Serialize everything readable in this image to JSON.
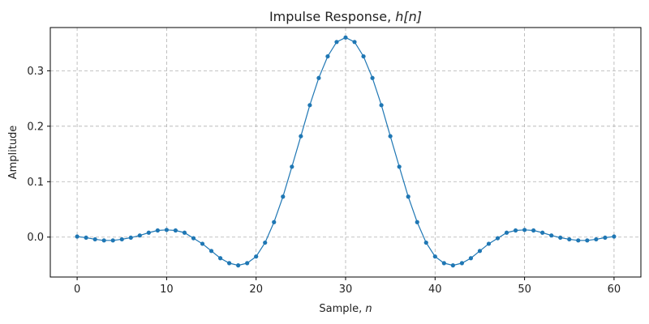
{
  "chart_data": {
    "type": "line",
    "title_prefix": "Impulse Response, ",
    "title_math": "h[n]",
    "xlabel_prefix": "Sample, ",
    "xlabel_math": "n",
    "ylabel": "Amplitude",
    "xlim": [
      -3,
      63
    ],
    "ylim": [
      -0.072,
      0.378
    ],
    "xticks": [
      0,
      10,
      20,
      30,
      40,
      50,
      60
    ],
    "xtick_labels": [
      "0",
      "10",
      "20",
      "30",
      "40",
      "50",
      "60"
    ],
    "yticks": [
      0.0,
      0.1,
      0.2,
      0.3
    ],
    "ytick_labels": [
      "0.0",
      "0.1",
      "0.2",
      "0.3"
    ],
    "grid": true,
    "marker": "circle",
    "series": [
      {
        "color": "#1f77b4",
        "x": [
          0,
          1,
          2,
          3,
          4,
          5,
          6,
          7,
          8,
          9,
          10,
          11,
          12,
          13,
          14,
          15,
          16,
          17,
          18,
          19,
          20,
          21,
          22,
          23,
          24,
          25,
          26,
          27,
          28,
          29,
          30,
          31,
          32,
          33,
          34,
          35,
          36,
          37,
          38,
          39,
          40,
          41,
          42,
          43,
          44,
          45,
          46,
          47,
          48,
          49,
          50,
          51,
          52,
          53,
          54,
          55,
          56,
          57,
          58,
          59,
          60
        ],
        "y": [
          0.001,
          -0.001,
          -0.004,
          -0.006,
          -0.006,
          -0.004,
          -0.001,
          0.003,
          0.008,
          0.012,
          0.013,
          0.012,
          0.008,
          -0.002,
          -0.012,
          -0.025,
          -0.038,
          -0.047,
          -0.051,
          -0.047,
          -0.035,
          -0.01,
          0.027,
          0.073,
          0.127,
          0.182,
          0.238,
          0.287,
          0.326,
          0.352,
          0.36,
          0.352,
          0.326,
          0.287,
          0.238,
          0.182,
          0.127,
          0.073,
          0.027,
          -0.01,
          -0.035,
          -0.047,
          -0.051,
          -0.047,
          -0.038,
          -0.025,
          -0.012,
          -0.002,
          0.008,
          0.012,
          0.013,
          0.012,
          0.008,
          0.003,
          -0.001,
          -0.004,
          -0.006,
          -0.006,
          -0.004,
          -0.001,
          0.001
        ]
      }
    ]
  }
}
